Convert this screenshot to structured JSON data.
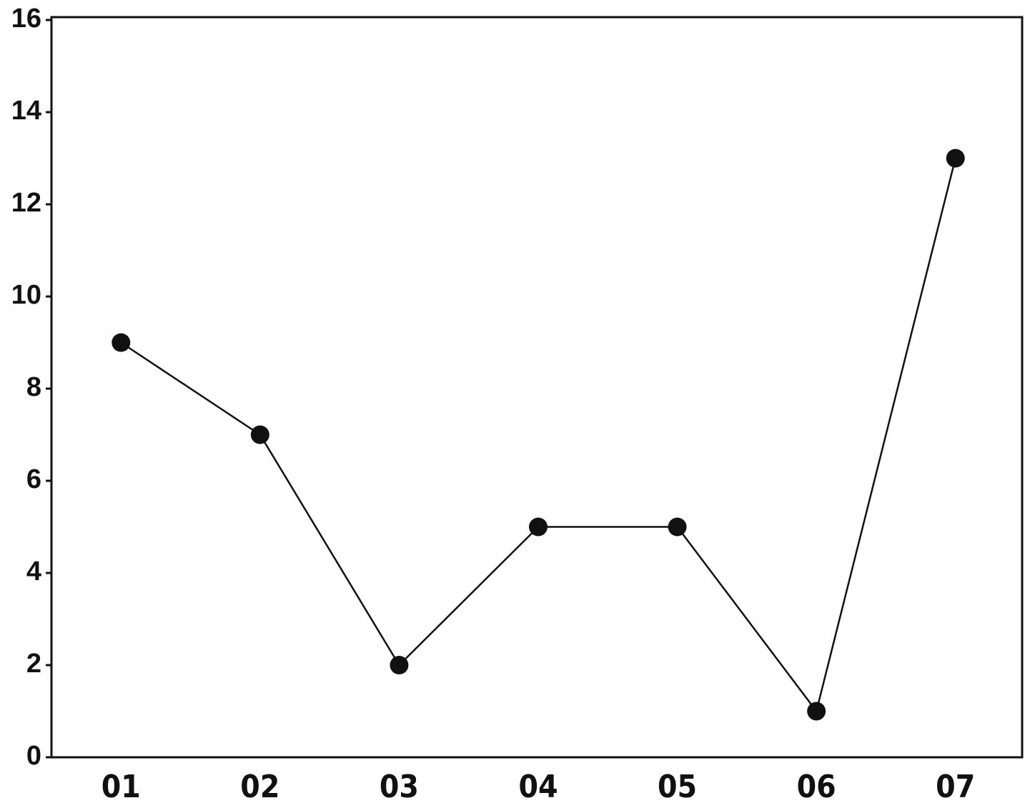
{
  "chart_data": {
    "type": "line",
    "categories": [
      "01",
      "02",
      "03",
      "04",
      "05",
      "06",
      "07"
    ],
    "values": [
      9,
      7,
      2,
      5,
      5,
      1,
      13
    ],
    "color": "#111111",
    "ylim": [
      0,
      16
    ],
    "yticks": [
      0,
      2,
      4,
      6,
      8,
      10,
      12,
      14,
      16
    ]
  }
}
